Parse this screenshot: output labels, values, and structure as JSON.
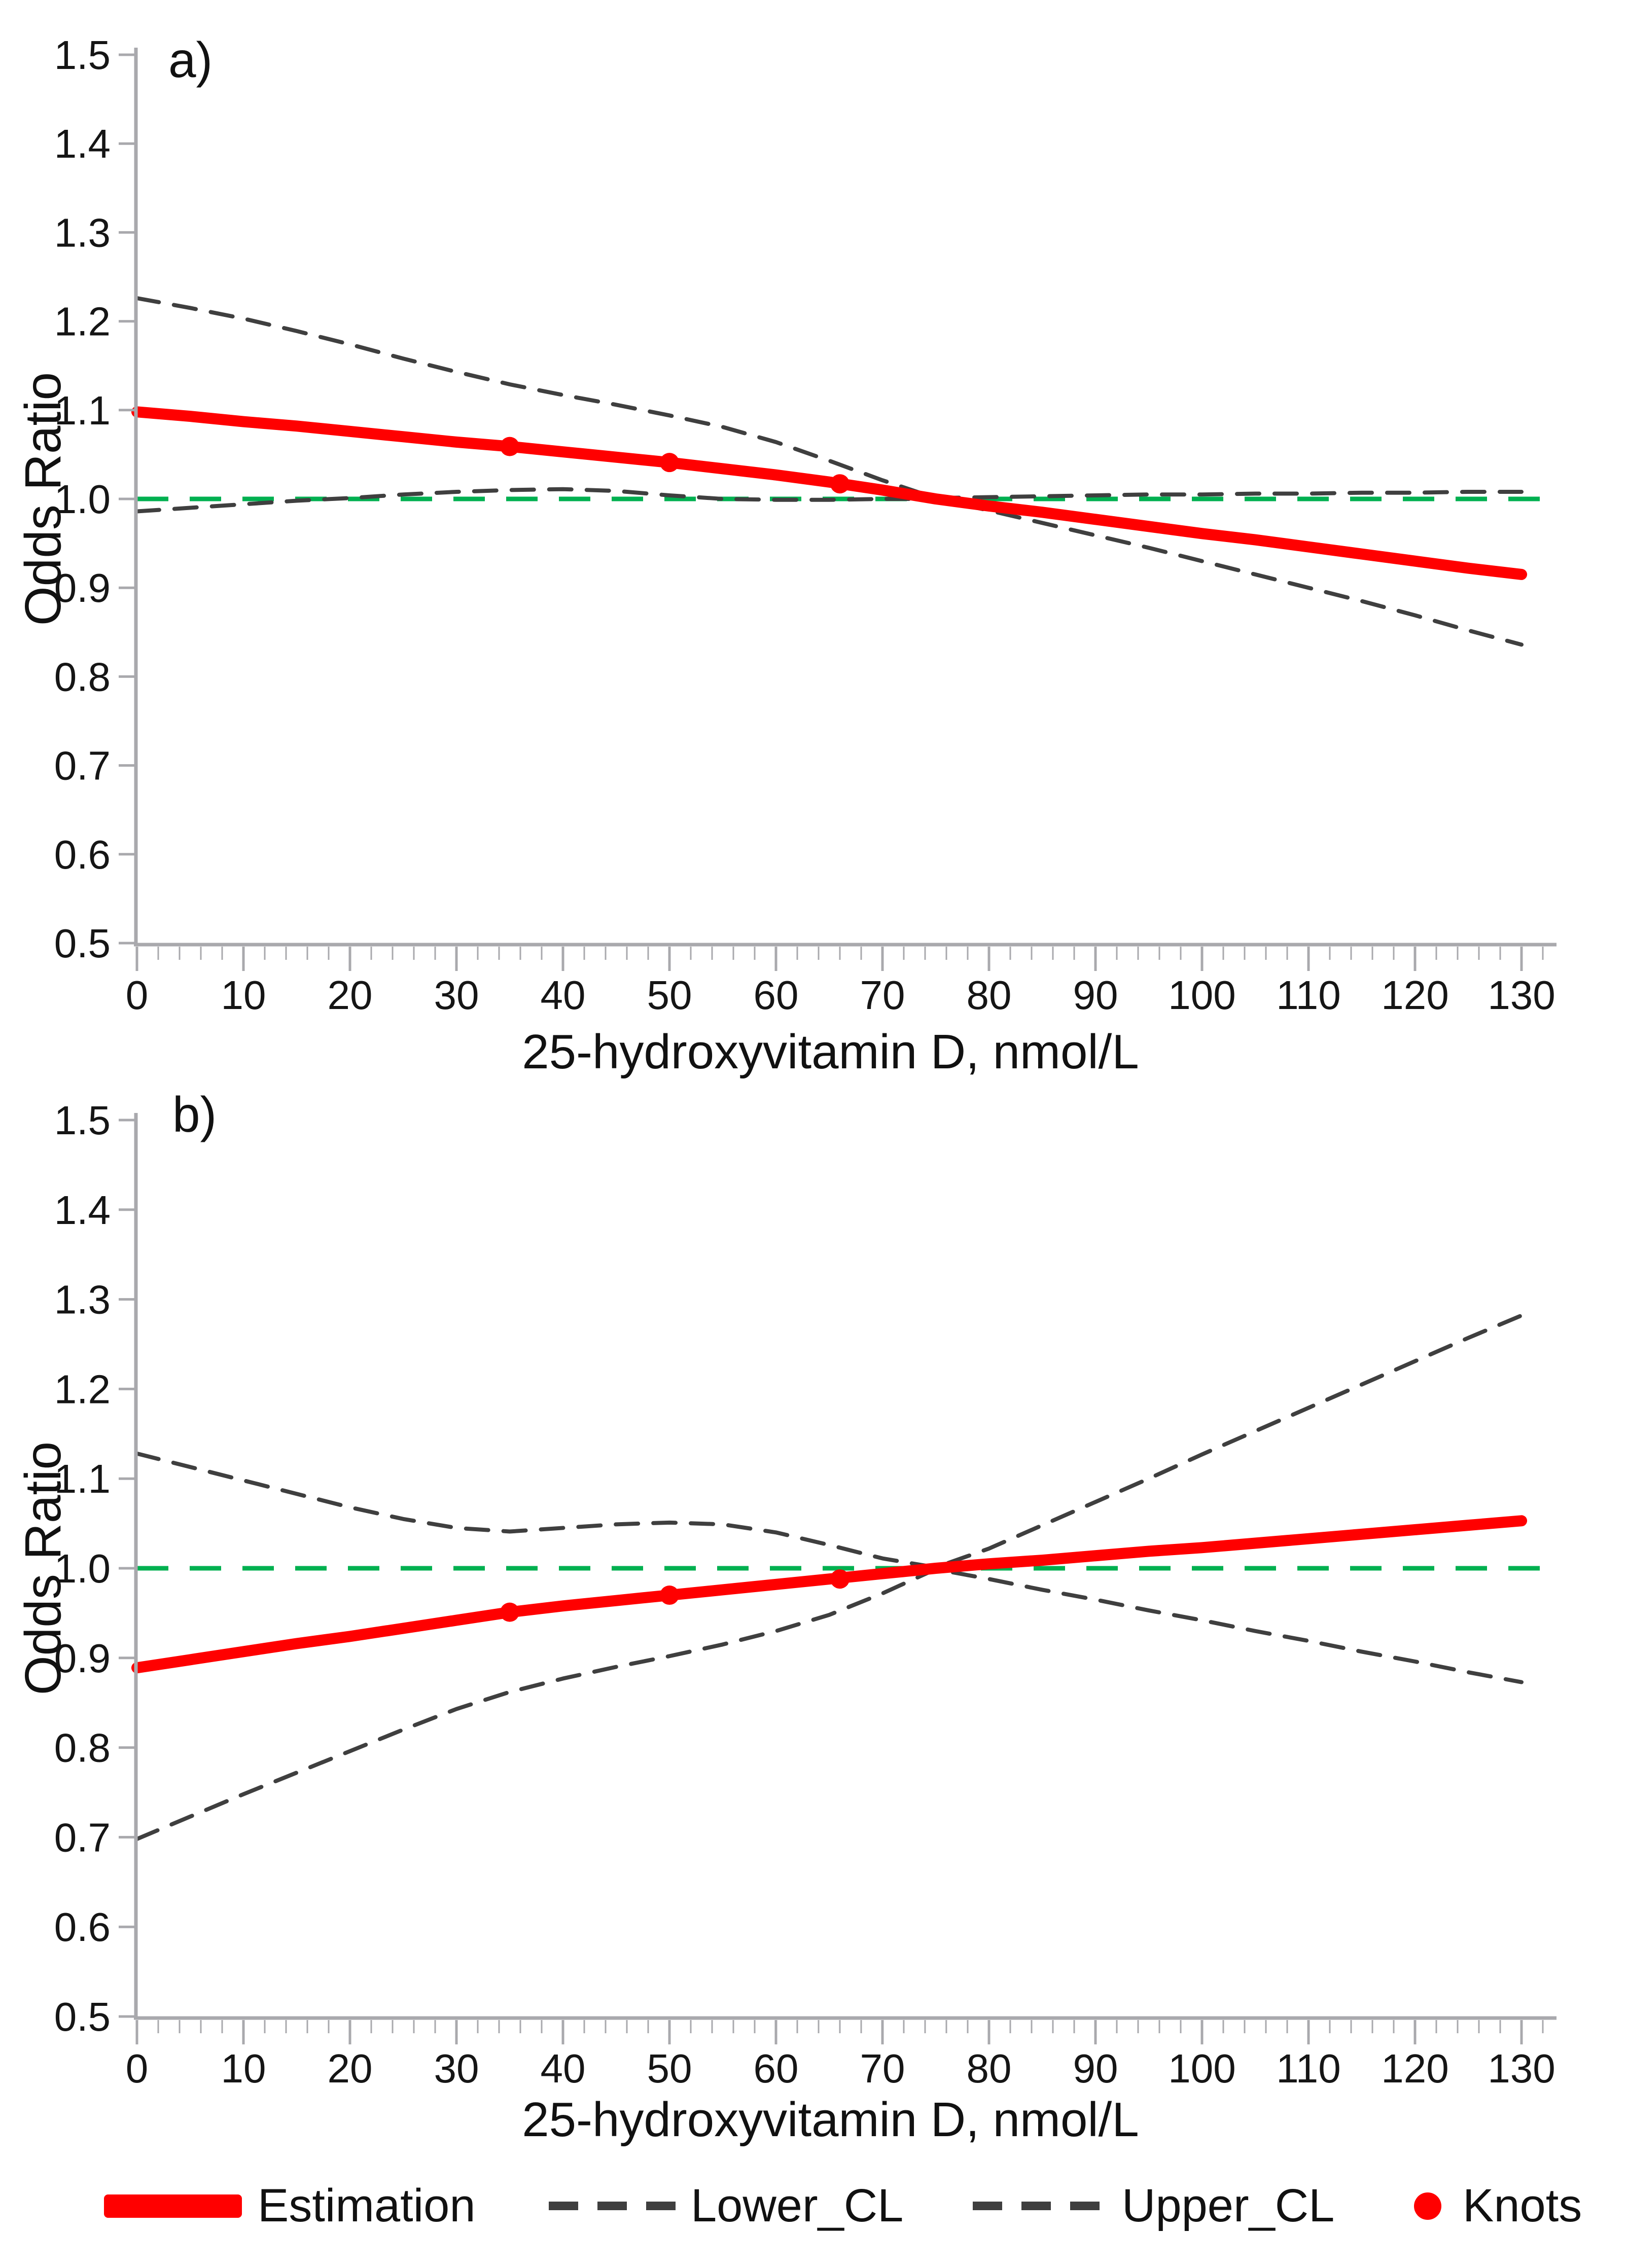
{
  "figure": {
    "y_axis_title": "Odds Ratio",
    "x_axis_title": "25-hydroxyvitamin D, nmol/L",
    "colors": {
      "estimation": "#ff0000",
      "confidence_limit": "#3f3f3f",
      "reference_line": "#00b050",
      "axis": "#a9a9ad",
      "text": "#151515"
    }
  },
  "chart_data": [
    {
      "type": "line",
      "panel_label": "a)",
      "ylabel": "Odds Ratio",
      "xlabel": "25-hydroxyvitamin D, nmol/L",
      "xlim": [
        0,
        130
      ],
      "ylim": [
        0.5,
        1.5
      ],
      "x_ticks": [
        0,
        10,
        20,
        30,
        40,
        50,
        60,
        70,
        80,
        90,
        100,
        110,
        120,
        130
      ],
      "y_ticks": [
        "1.5",
        "1.4",
        "1.3",
        "1.2",
        "1.1",
        "1.0",
        "0.9",
        "0.8",
        "0.7",
        "0.6",
        "0.5"
      ],
      "reference_line_y": 1.0,
      "grid": "off",
      "x": [
        0,
        5,
        10,
        15,
        20,
        25,
        30,
        35,
        40,
        45,
        50,
        55,
        60,
        65,
        70,
        75,
        80,
        85,
        90,
        95,
        100,
        105,
        110,
        115,
        120,
        125,
        130
      ],
      "series": [
        {
          "name": "Estimation",
          "values": [
            1.098,
            1.093,
            1.087,
            1.082,
            1.076,
            1.07,
            1.064,
            1.059,
            1.053,
            1.047,
            1.041,
            1.034,
            1.027,
            1.019,
            1.01,
            1.0,
            0.992,
            0.985,
            0.977,
            0.969,
            0.961,
            0.954,
            0.946,
            0.938,
            0.93,
            0.922,
            0.915
          ]
        },
        {
          "name": "Lower_CL",
          "values": [
            0.986,
            0.99,
            0.994,
            0.998,
            1.001,
            1.005,
            1.008,
            1.01,
            1.011,
            1.009,
            1.004,
            1.0,
            0.999,
            0.999,
            1.0,
            1.0,
            0.987,
            0.973,
            0.959,
            0.945,
            0.93,
            0.915,
            0.9,
            0.885,
            0.869,
            0.852,
            0.836
          ]
        },
        {
          "name": "Upper_CL",
          "values": [
            1.226,
            1.215,
            1.203,
            1.189,
            1.174,
            1.158,
            1.143,
            1.129,
            1.117,
            1.106,
            1.094,
            1.081,
            1.064,
            1.043,
            1.021,
            1.001,
            1.002,
            1.003,
            1.004,
            1.005,
            1.005,
            1.006,
            1.006,
            1.007,
            1.007,
            1.008,
            1.008
          ]
        }
      ],
      "knots": {
        "x": [
          35,
          50,
          66
        ],
        "y": [
          1.059,
          1.041,
          1.017
        ]
      }
    },
    {
      "type": "line",
      "panel_label": "b)",
      "ylabel": "Odds Ratio",
      "xlabel": "25-hydroxyvitamin D, nmol/L",
      "xlim": [
        0,
        130
      ],
      "ylim": [
        0.5,
        1.5
      ],
      "x_ticks": [
        0,
        10,
        20,
        30,
        40,
        50,
        60,
        70,
        80,
        90,
        100,
        110,
        120,
        130
      ],
      "y_ticks": [
        "1.5",
        "1.4",
        "1.3",
        "1.2",
        "1.1",
        "1.0",
        "0.9",
        "0.8",
        "0.7",
        "0.6",
        "0.5"
      ],
      "reference_line_y": 1.0,
      "grid": "off",
      "x": [
        0,
        5,
        10,
        15,
        20,
        25,
        30,
        35,
        40,
        45,
        50,
        55,
        60,
        65,
        70,
        75,
        80,
        85,
        90,
        95,
        100,
        105,
        110,
        115,
        120,
        125,
        130
      ],
      "series": [
        {
          "name": "Estimation",
          "values": [
            0.889,
            0.898,
            0.907,
            0.916,
            0.924,
            0.933,
            0.942,
            0.951,
            0.958,
            0.964,
            0.97,
            0.976,
            0.982,
            0.988,
            0.994,
            1.0,
            1.005,
            1.009,
            1.014,
            1.019,
            1.023,
            1.028,
            1.033,
            1.038,
            1.043,
            1.048,
            1.053
          ]
        },
        {
          "name": "Lower_CL",
          "values": [
            0.698,
            0.723,
            0.748,
            0.772,
            0.796,
            0.82,
            0.843,
            0.862,
            0.877,
            0.89,
            0.902,
            0.915,
            0.93,
            0.948,
            0.972,
            0.999,
            0.988,
            0.976,
            0.965,
            0.953,
            0.942,
            0.93,
            0.919,
            0.907,
            0.896,
            0.884,
            0.873
          ]
        },
        {
          "name": "Upper_CL",
          "values": [
            1.128,
            1.113,
            1.098,
            1.083,
            1.068,
            1.055,
            1.045,
            1.041,
            1.045,
            1.049,
            1.051,
            1.049,
            1.04,
            1.026,
            1.011,
            1.001,
            1.022,
            1.048,
            1.074,
            1.1,
            1.127,
            1.153,
            1.179,
            1.205,
            1.231,
            1.257,
            1.282
          ]
        }
      ],
      "knots": {
        "x": [
          35,
          50,
          66
        ],
        "y": [
          0.951,
          0.97,
          0.988
        ]
      }
    }
  ],
  "legend": {
    "items": [
      {
        "label": "Estimation",
        "marker": "thick-red-line"
      },
      {
        "label": "Lower_CL",
        "marker": "black-dashed-line"
      },
      {
        "label": "Upper_CL",
        "marker": "black-dashed-line"
      },
      {
        "label": "Knots",
        "marker": "red-dot"
      }
    ]
  }
}
